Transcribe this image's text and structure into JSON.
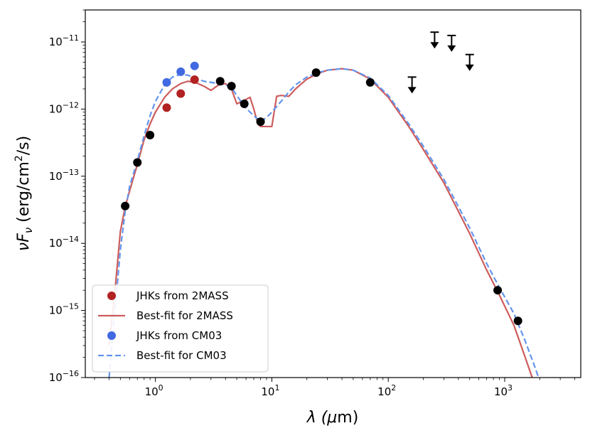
{
  "chart_data": {
    "type": "scatter",
    "xscale": "log",
    "yscale": "log",
    "xlim": [
      0.25,
      4500
    ],
    "ylim": [
      1e-16,
      3e-11
    ],
    "grid": false,
    "legend_position": "lower-left",
    "xlabel": {
      "pre": "λ (",
      "mu": "μ",
      "post": "m)"
    },
    "ylabel": {
      "nu": "ν",
      "F": "F",
      "sub": "ν",
      "mid": " (erg/cm",
      "sup": "2",
      "end": "/s)"
    },
    "x_ticks": [
      {
        "value": 1,
        "base": "10",
        "exp": "0"
      },
      {
        "value": 10,
        "base": "10",
        "exp": "1"
      },
      {
        "value": 100,
        "base": "10",
        "exp": "2"
      },
      {
        "value": 1000,
        "base": "10",
        "exp": "3"
      }
    ],
    "y_ticks": [
      {
        "value": 1e-16,
        "base": "10",
        "exp": "−16"
      },
      {
        "value": 1e-15,
        "base": "10",
        "exp": "−15"
      },
      {
        "value": 1e-14,
        "base": "10",
        "exp": "−14"
      },
      {
        "value": 1e-13,
        "base": "10",
        "exp": "−13"
      },
      {
        "value": 1e-12,
        "base": "10",
        "exp": "−12"
      },
      {
        "value": 1e-11,
        "base": "10",
        "exp": "−11"
      }
    ],
    "colors": {
      "jhk_2mass": "#b22222",
      "fit_2mass": "#cd5c5c",
      "jhk_cm03": "#4169e1",
      "fit_cm03": "#6495ed",
      "photometry": "#000000",
      "upper_limits": "#000000"
    },
    "series": [
      {
        "name": "JHKs from 2MASS",
        "kind": "points",
        "color": "#b22222",
        "x": [
          1.25,
          1.65,
          2.17
        ],
        "y": [
          1.05e-12,
          1.7e-12,
          2.75e-12
        ]
      },
      {
        "name": "Best-fit for 2MASS",
        "kind": "line",
        "color": "#cd5c5c",
        "x": [
          0.4,
          0.45,
          0.5,
          0.55,
          0.6,
          0.7,
          0.8,
          0.9,
          1.0,
          1.2,
          1.4,
          1.65,
          1.9,
          2.2,
          2.6,
          3.0,
          3.5,
          4.0,
          4.5,
          5.0,
          5.8,
          6.5,
          7.0,
          7.6,
          8.0,
          10.0,
          11.0,
          12.0,
          14.0,
          16.0,
          20.0,
          25.0,
          30.0,
          40.0,
          50.0,
          70.0,
          100.0,
          150.0,
          200.0,
          300.0,
          500.0,
          700.0,
          900.0,
          1200.0,
          1500.0,
          1800.0
        ],
        "y": [
          3e-16,
          2e-15,
          1.5e-14,
          3.5e-14,
          6e-14,
          1.5e-13,
          3.5e-13,
          6e-13,
          9e-13,
          1.5e-12,
          2e-12,
          2.4e-12,
          2.6e-12,
          2.5e-12,
          2.2e-12,
          1.9e-12,
          2.3e-12,
          2.4e-12,
          2e-12,
          1.2e-12,
          1.35e-12,
          1.5e-12,
          1e-12,
          6e-13,
          5.5e-13,
          5.5e-13,
          1.55e-12,
          1.6e-12,
          1.55e-12,
          2e-12,
          2.8e-12,
          3.4e-12,
          3.8e-12,
          4e-12,
          3.8e-12,
          2.8e-12,
          1.5e-12,
          5.5e-13,
          2.5e-13,
          8e-14,
          1.4e-14,
          4e-15,
          1.7e-15,
          6e-16,
          2e-16,
          8e-17
        ]
      },
      {
        "name": "JHKs from CM03",
        "kind": "points",
        "color": "#4169e1",
        "x": [
          1.25,
          1.65,
          2.17
        ],
        "y": [
          2.5e-12,
          3.6e-12,
          4.4e-12
        ]
      },
      {
        "name": "Best-fit for CM03",
        "kind": "dashed-line",
        "color": "#6495ed",
        "x": [
          0.4,
          0.45,
          0.5,
          0.55,
          0.6,
          0.7,
          0.8,
          0.9,
          1.0,
          1.2,
          1.4,
          1.65,
          1.9,
          2.2,
          2.6,
          3.0,
          3.5,
          4.0,
          4.5,
          5.0,
          5.8,
          6.5,
          7.0,
          8.0,
          9.0,
          10.0,
          12.0,
          14.0,
          16.0,
          20.0,
          25.0,
          30.0,
          40.0,
          50.0,
          70.0,
          100.0,
          150.0,
          200.0,
          300.0,
          500.0,
          700.0,
          900.0,
          1200.0,
          1500.0,
          1800.0,
          2100.0
        ],
        "y": [
          1e-16,
          1e-15,
          8e-15,
          3e-14,
          7e-14,
          1.7e-13,
          4e-13,
          8e-13,
          1.3e-12,
          2.3e-12,
          3e-12,
          3.3e-12,
          3.2e-12,
          2.9e-12,
          2.6e-12,
          2.5e-12,
          2.4e-12,
          2.3e-12,
          2.1e-12,
          1.6e-12,
          1.1e-12,
          9e-13,
          8e-13,
          6.5e-13,
          7.5e-13,
          9e-13,
          1.3e-12,
          1.8e-12,
          2.3e-12,
          3e-12,
          3.5e-12,
          3.8e-12,
          4e-12,
          3.8e-12,
          2.9e-12,
          1.6e-12,
          6e-13,
          2.8e-13,
          9e-14,
          1.7e-14,
          5e-15,
          2.2e-15,
          9e-16,
          3.5e-16,
          1.5e-16,
          7e-17
        ]
      },
      {
        "name": "",
        "kind": "points",
        "color": "#000000",
        "x": [
          0.55,
          0.7,
          0.9,
          3.6,
          4.5,
          5.8,
          8.0,
          24.0,
          70.0,
          870.0,
          1300.0
        ],
        "y": [
          3.6e-14,
          1.6e-13,
          4.1e-13,
          2.6e-12,
          2.2e-12,
          1.2e-12,
          6.5e-13,
          3.5e-12,
          2.5e-12,
          2e-15,
          7e-16
        ]
      },
      {
        "name": "",
        "kind": "upper-limits",
        "color": "#000000",
        "x": [
          160.0,
          250.0,
          350.0,
          500.0
        ],
        "y": [
          3e-12,
          1.4e-11,
          1.25e-11,
          6.5e-12
        ]
      }
    ],
    "legend": [
      {
        "label": "JHKs from 2MASS",
        "kind": "point",
        "color": "#b22222"
      },
      {
        "label": "Best-fit for 2MASS",
        "kind": "line",
        "color": "#cd5c5c"
      },
      {
        "label": "JHKs from CM03",
        "kind": "point",
        "color": "#4169e1"
      },
      {
        "label": "Best-fit for CM03",
        "kind": "dashed-line",
        "color": "#6495ed"
      }
    ]
  }
}
